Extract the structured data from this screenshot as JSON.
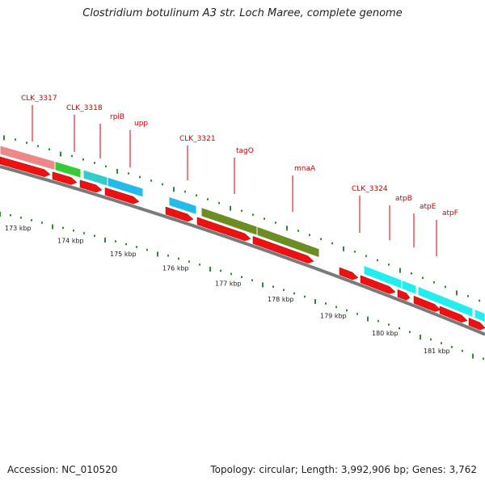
{
  "title": "Clostridium botulinum A3 str. Loch Maree, complete genome",
  "accession": "Accession: NC_010520",
  "summary": "Topology: circular; Length: 3,992,906 bp; Genes: 3,762",
  "colors": {
    "cds_arrow": "#ee1111",
    "backbone": "#7a7a7a",
    "tick": "#2e8b2e",
    "label": "#cc0000"
  },
  "scale_ticks": [
    {
      "label": "173 kbp"
    },
    {
      "label": "174 kbp"
    },
    {
      "label": "175 kbp"
    },
    {
      "label": "176 kbp"
    },
    {
      "label": "177 kbp"
    },
    {
      "label": "178 kbp"
    },
    {
      "label": "179 kbp"
    },
    {
      "label": "180 kbp"
    },
    {
      "label": "181 kbp"
    }
  ],
  "gene_labels": [
    {
      "name": "CLK_3317",
      "color": "#ee8888"
    },
    {
      "name": "CLK_3318",
      "color": "#33cc33"
    },
    {
      "name": "rpiB",
      "color": "#33cccc"
    },
    {
      "name": "upp",
      "color": "#22bbee"
    },
    {
      "name": "CLK_3321",
      "color": "#22bbee"
    },
    {
      "name": "tagO",
      "color": "#6b8e23"
    },
    {
      "name": "mnaA",
      "color": "#6b8e23"
    },
    {
      "name": "CLK_3324",
      "color": "#22eeee"
    },
    {
      "name": "atpB",
      "color": "#22eeee"
    },
    {
      "name": "atpE",
      "color": "#22eeee"
    },
    {
      "name": "atpF",
      "color": "#22eeee"
    }
  ]
}
